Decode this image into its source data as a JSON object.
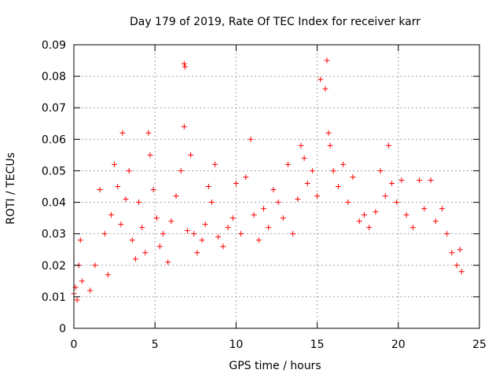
{
  "chart_data": {
    "type": "scatter",
    "title": "Day 179 of 2019, Rate Of TEC Index for receiver karr",
    "xlabel": "GPS time / hours",
    "ylabel": "ROTI / TECUs",
    "xlim": [
      0,
      25
    ],
    "ylim": [
      0,
      0.09
    ],
    "grid": true,
    "marker": "plus",
    "color": "#ff0000",
    "x_ticks": [
      "0",
      "5",
      "10",
      "15",
      "20",
      "25"
    ],
    "y_ticks": [
      "0",
      "0.01",
      "0.02",
      "0.03",
      "0.04",
      "0.05",
      "0.06",
      "0.07",
      "0.08",
      "0.09"
    ],
    "x_tick_values": [
      0,
      5,
      10,
      15,
      20,
      25
    ],
    "y_tick_values": [
      0,
      0.01,
      0.02,
      0.03,
      0.04,
      0.05,
      0.06,
      0.07,
      0.08,
      0.09
    ],
    "series": [
      {
        "name": "ROTI",
        "points": [
          [
            0.0,
            0.011
          ],
          [
            0.1,
            0.013
          ],
          [
            0.2,
            0.009
          ],
          [
            0.3,
            0.02
          ],
          [
            0.4,
            0.028
          ],
          [
            0.5,
            0.015
          ],
          [
            1.0,
            0.012
          ],
          [
            1.3,
            0.02
          ],
          [
            1.6,
            0.044
          ],
          [
            1.9,
            0.03
          ],
          [
            2.1,
            0.017
          ],
          [
            2.3,
            0.036
          ],
          [
            2.5,
            0.052
          ],
          [
            2.7,
            0.045
          ],
          [
            2.9,
            0.033
          ],
          [
            3.0,
            0.062
          ],
          [
            3.2,
            0.041
          ],
          [
            3.4,
            0.05
          ],
          [
            3.6,
            0.028
          ],
          [
            3.8,
            0.022
          ],
          [
            4.0,
            0.04
          ],
          [
            4.2,
            0.032
          ],
          [
            4.4,
            0.024
          ],
          [
            4.6,
            0.062
          ],
          [
            4.7,
            0.055
          ],
          [
            4.9,
            0.044
          ],
          [
            5.1,
            0.035
          ],
          [
            5.3,
            0.026
          ],
          [
            5.5,
            0.03
          ],
          [
            5.8,
            0.021
          ],
          [
            6.0,
            0.034
          ],
          [
            6.3,
            0.042
          ],
          [
            6.6,
            0.05
          ],
          [
            6.8,
            0.084
          ],
          [
            6.85,
            0.083
          ],
          [
            6.8,
            0.064
          ],
          [
            7.0,
            0.031
          ],
          [
            7.2,
            0.055
          ],
          [
            7.4,
            0.03
          ],
          [
            7.6,
            0.024
          ],
          [
            7.9,
            0.028
          ],
          [
            8.1,
            0.033
          ],
          [
            8.3,
            0.045
          ],
          [
            8.5,
            0.04
          ],
          [
            8.7,
            0.052
          ],
          [
            8.9,
            0.029
          ],
          [
            9.2,
            0.026
          ],
          [
            9.5,
            0.032
          ],
          [
            9.8,
            0.035
          ],
          [
            10.0,
            0.046
          ],
          [
            10.3,
            0.03
          ],
          [
            10.6,
            0.048
          ],
          [
            10.9,
            0.06
          ],
          [
            11.1,
            0.036
          ],
          [
            11.4,
            0.028
          ],
          [
            11.7,
            0.038
          ],
          [
            12.0,
            0.032
          ],
          [
            12.3,
            0.044
          ],
          [
            12.6,
            0.04
          ],
          [
            12.9,
            0.035
          ],
          [
            13.2,
            0.052
          ],
          [
            13.5,
            0.03
          ],
          [
            13.8,
            0.041
          ],
          [
            14.0,
            0.058
          ],
          [
            14.2,
            0.054
          ],
          [
            14.4,
            0.046
          ],
          [
            14.7,
            0.05
          ],
          [
            15.0,
            0.042
          ],
          [
            15.2,
            0.079
          ],
          [
            15.5,
            0.076
          ],
          [
            15.6,
            0.085
          ],
          [
            15.7,
            0.062
          ],
          [
            15.8,
            0.058
          ],
          [
            16.0,
            0.05
          ],
          [
            16.3,
            0.045
          ],
          [
            16.6,
            0.052
          ],
          [
            16.9,
            0.04
          ],
          [
            17.2,
            0.048
          ],
          [
            17.6,
            0.034
          ],
          [
            17.9,
            0.036
          ],
          [
            18.2,
            0.032
          ],
          [
            18.6,
            0.037
          ],
          [
            18.9,
            0.05
          ],
          [
            19.2,
            0.042
          ],
          [
            19.4,
            0.058
          ],
          [
            19.6,
            0.046
          ],
          [
            19.9,
            0.04
          ],
          [
            20.2,
            0.047
          ],
          [
            20.5,
            0.036
          ],
          [
            20.9,
            0.032
          ],
          [
            21.3,
            0.047
          ],
          [
            21.6,
            0.038
          ],
          [
            22.0,
            0.047
          ],
          [
            22.3,
            0.034
          ],
          [
            22.7,
            0.038
          ],
          [
            23.0,
            0.03
          ],
          [
            23.3,
            0.024
          ],
          [
            23.6,
            0.02
          ],
          [
            23.8,
            0.025
          ],
          [
            23.9,
            0.018
          ]
        ]
      }
    ]
  }
}
